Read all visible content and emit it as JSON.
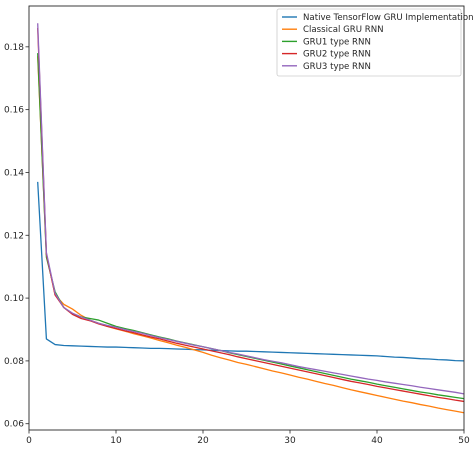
{
  "chart_data": {
    "type": "line",
    "title": "",
    "xlabel": "",
    "ylabel": "",
    "xlim": [
      0,
      50
    ],
    "ylim": [
      0.058,
      0.193
    ],
    "xticks": [
      0,
      10,
      20,
      30,
      40,
      50
    ],
    "yticks": [
      0.06,
      0.08,
      0.1,
      0.12,
      0.14,
      0.16,
      0.18
    ],
    "x": [
      1,
      2,
      3,
      4,
      5,
      6,
      7,
      8,
      9,
      10,
      11,
      12,
      13,
      14,
      15,
      16,
      17,
      18,
      19,
      20,
      21,
      22,
      23,
      24,
      25,
      26,
      27,
      28,
      29,
      30,
      31,
      32,
      33,
      34,
      35,
      36,
      37,
      38,
      39,
      40,
      41,
      42,
      43,
      44,
      45,
      46,
      47,
      48,
      49,
      50
    ],
    "grid": false,
    "legend_position": "top-right",
    "series": [
      {
        "name": "Native TensorFlow GRU Implementation",
        "color": "#1f77b4",
        "values": [
          0.137,
          0.087,
          0.0852,
          0.0849,
          0.0848,
          0.0847,
          0.0846,
          0.0845,
          0.0844,
          0.0844,
          0.0843,
          0.0842,
          0.0841,
          0.084,
          0.084,
          0.0839,
          0.0838,
          0.0837,
          0.0836,
          0.0835,
          0.0834,
          0.0833,
          0.0832,
          0.0831,
          0.0831,
          0.083,
          0.0829,
          0.0828,
          0.0827,
          0.0826,
          0.0825,
          0.0824,
          0.0823,
          0.0822,
          0.0821,
          0.082,
          0.0819,
          0.0818,
          0.0817,
          0.0816,
          0.0814,
          0.0812,
          0.0811,
          0.0809,
          0.0807,
          0.0806,
          0.0804,
          0.0803,
          0.0801,
          0.08
        ]
      },
      {
        "name": "Classical GRU RNN",
        "color": "#ff7f0e",
        "values": [
          0.177,
          0.114,
          0.101,
          0.098,
          0.0965,
          0.0945,
          0.093,
          0.092,
          0.091,
          0.0902,
          0.0895,
          0.0887,
          0.088,
          0.0873,
          0.0865,
          0.0858,
          0.085,
          0.0843,
          0.0835,
          0.0827,
          0.0818,
          0.081,
          0.0803,
          0.0795,
          0.0789,
          0.0782,
          0.0775,
          0.0768,
          0.0762,
          0.0755,
          0.0748,
          0.0742,
          0.0735,
          0.0728,
          0.0722,
          0.0715,
          0.0708,
          0.0702,
          0.0696,
          0.069,
          0.0684,
          0.0678,
          0.0672,
          0.0667,
          0.0661,
          0.0656,
          0.065,
          0.0645,
          0.064,
          0.0635
        ]
      },
      {
        "name": "GRU1 type RNN",
        "color": "#2ca02c",
        "values": [
          0.178,
          0.113,
          0.102,
          0.097,
          0.095,
          0.094,
          0.0935,
          0.093,
          0.092,
          0.091,
          0.0903,
          0.0897,
          0.089,
          0.0883,
          0.0876,
          0.087,
          0.0863,
          0.0857,
          0.0851,
          0.0845,
          0.0839,
          0.0833,
          0.0826,
          0.082,
          0.0814,
          0.0808,
          0.0802,
          0.0796,
          0.079,
          0.0784,
          0.0778,
          0.0772,
          0.0766,
          0.076,
          0.0754,
          0.0748,
          0.0742,
          0.0737,
          0.0732,
          0.0726,
          0.0721,
          0.0716,
          0.0711,
          0.0706,
          0.0701,
          0.0697,
          0.0692,
          0.0688,
          0.0684,
          0.068
        ]
      },
      {
        "name": "GRU2 type RNN",
        "color": "#d62728",
        "values": [
          0.186,
          0.114,
          0.101,
          0.097,
          0.0948,
          0.0935,
          0.0928,
          0.0918,
          0.091,
          0.0903,
          0.0896,
          0.089,
          0.0883,
          0.0876,
          0.087,
          0.0863,
          0.0856,
          0.085,
          0.0844,
          0.0838,
          0.0832,
          0.0826,
          0.082,
          0.0813,
          0.0807,
          0.0801,
          0.0795,
          0.0789,
          0.0783,
          0.0777,
          0.0771,
          0.0765,
          0.0759,
          0.0753,
          0.0747,
          0.0741,
          0.0735,
          0.073,
          0.0725,
          0.0719,
          0.0714,
          0.0709,
          0.0704,
          0.0699,
          0.0694,
          0.0689,
          0.0684,
          0.068,
          0.0675,
          0.0671
        ]
      },
      {
        "name": "GRU3 type RNN",
        "color": "#9467bd",
        "values": [
          0.1875,
          0.1145,
          0.1015,
          0.097,
          0.0952,
          0.094,
          0.093,
          0.092,
          0.0913,
          0.0907,
          0.09,
          0.0894,
          0.0888,
          0.0881,
          0.0874,
          0.0868,
          0.0862,
          0.0856,
          0.085,
          0.0845,
          0.0839,
          0.0833,
          0.0827,
          0.0822,
          0.0816,
          0.081,
          0.0804,
          0.0799,
          0.0794,
          0.0788,
          0.0782,
          0.0777,
          0.0772,
          0.0767,
          0.0762,
          0.0757,
          0.0752,
          0.0747,
          0.0742,
          0.0738,
          0.0733,
          0.0729,
          0.0725,
          0.0721,
          0.0716,
          0.0712,
          0.0708,
          0.0704,
          0.07,
          0.0695
        ]
      }
    ]
  }
}
